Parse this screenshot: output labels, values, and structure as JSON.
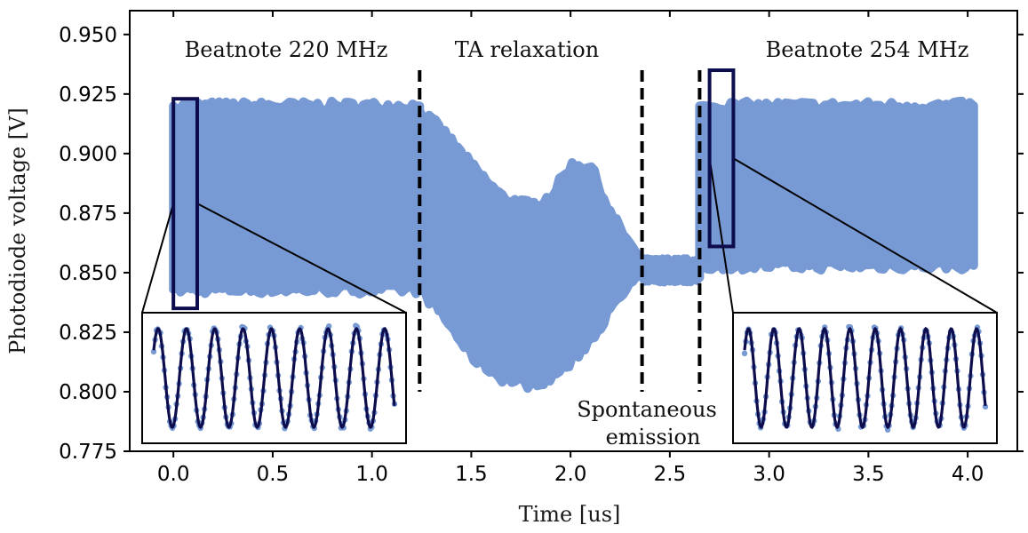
{
  "chart_data": {
    "type": "scatter",
    "title": "",
    "xlabel": "Time [us]",
    "ylabel": "Photodiode voltage [V]",
    "xlim": [
      -0.22,
      4.25
    ],
    "ylim": [
      0.775,
      0.96
    ],
    "x_ticks": [
      0.0,
      0.5,
      1.0,
      1.5,
      2.0,
      2.5,
      3.0,
      3.5,
      4.0
    ],
    "x_tick_labels": [
      "0.0",
      "0.5",
      "1.0",
      "1.5",
      "2.0",
      "2.5",
      "3.0",
      "3.5",
      "4.0"
    ],
    "y_ticks": [
      0.775,
      0.8,
      0.825,
      0.85,
      0.875,
      0.9,
      0.925,
      0.95
    ],
    "y_tick_labels": [
      "0.775",
      "0.800",
      "0.825",
      "0.850",
      "0.875",
      "0.900",
      "0.925",
      "0.950"
    ],
    "series_color": "#7799d4",
    "fit_color": "#0d0d4d",
    "segments": [
      {
        "name": "Beatnote 220 MHz",
        "x_range": [
          0.0,
          1.24
        ],
        "upper": 0.92,
        "lower": 0.843
      },
      {
        "name": "TA relaxation",
        "envelope_x": [
          1.24,
          1.35,
          1.5,
          1.65,
          1.8,
          1.9,
          2.0,
          2.1,
          2.2,
          2.3,
          2.36
        ],
        "envelope_upper": [
          0.918,
          0.91,
          0.895,
          0.882,
          0.878,
          0.882,
          0.895,
          0.895,
          0.875,
          0.862,
          0.853
        ],
        "envelope_lower": [
          0.843,
          0.833,
          0.815,
          0.806,
          0.803,
          0.806,
          0.812,
          0.822,
          0.834,
          0.845,
          0.848
        ]
      },
      {
        "name": "Spontaneous emission",
        "x_range": [
          2.36,
          2.65
        ],
        "upper": 0.854,
        "lower": 0.848
      },
      {
        "name": "Beatnote 254 MHz",
        "x_range": [
          2.65,
          4.03
        ],
        "upper": 0.92,
        "lower": 0.853
      }
    ],
    "vlines": [
      1.24,
      2.36,
      2.65
    ],
    "vline_range": [
      0.8,
      0.935
    ],
    "zoom_boxes": [
      {
        "x_range": [
          0.0,
          0.12
        ],
        "y_range": [
          0.835,
          0.923
        ]
      },
      {
        "x_range": [
          2.7,
          2.82
        ],
        "y_range": [
          0.861,
          0.935
        ]
      }
    ],
    "annotations": {
      "beatnote_220": "Beatnote 220 MHz",
      "ta_relaxation": "TA relaxation",
      "spontaneous_1": "Spontaneous",
      "spontaneous_2": "emission",
      "beatnote_254": "Beatnote 254 MHz"
    },
    "insets": [
      {
        "name": "inset-220",
        "cycles": 8.5
      },
      {
        "name": "inset-254",
        "cycles": 9.5
      }
    ]
  }
}
